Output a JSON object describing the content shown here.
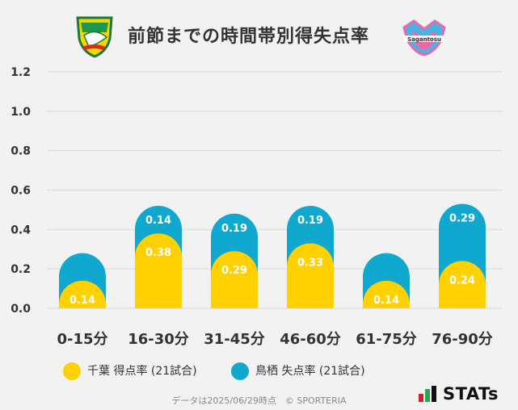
{
  "title": "前節までの時間帯別得失点率",
  "colors": {
    "scored": "#ffd100",
    "conceded": "#11a8cf",
    "grid": "#d9d9d9",
    "background": "#f2f2f2"
  },
  "logos": {
    "left": "JEF United Chiba crest",
    "right_text": "Sagantosu"
  },
  "legend": [
    {
      "label": "千葉 得点率 (21試合)",
      "color": "#ffd100"
    },
    {
      "label": "鳥栖 失点率 (21試合)",
      "color": "#11a8cf"
    }
  ],
  "footer": "データは2025/06/29時点　© SPORTERIA",
  "brand": "STATs",
  "chart_data": {
    "type": "bar",
    "stacked": true,
    "categories": [
      "0-15分",
      "16-30分",
      "31-45分",
      "46-60分",
      "61-75分",
      "76-90分"
    ],
    "series": [
      {
        "name": "千葉 得点率 (21試合)",
        "values": [
          0.14,
          0.38,
          0.29,
          0.33,
          0.14,
          0.24
        ]
      },
      {
        "name": "鳥栖 失点率 (21試合)",
        "values": [
          0.14,
          0.14,
          0.19,
          0.19,
          0.14,
          0.29
        ]
      }
    ],
    "data_labels": {
      "scored": [
        "0.14",
        "0.38",
        "0.29",
        "0.33",
        "0.14",
        "0.24"
      ],
      "conceded": [
        "",
        "0.14",
        "0.19",
        "0.19",
        "",
        "0.29"
      ]
    },
    "yticks": [
      "0.0",
      "0.2",
      "0.4",
      "0.6",
      "0.8",
      "1.0",
      "1.2"
    ],
    "ylim": [
      0,
      1.2
    ],
    "grid": true,
    "legend_position": "bottom"
  }
}
